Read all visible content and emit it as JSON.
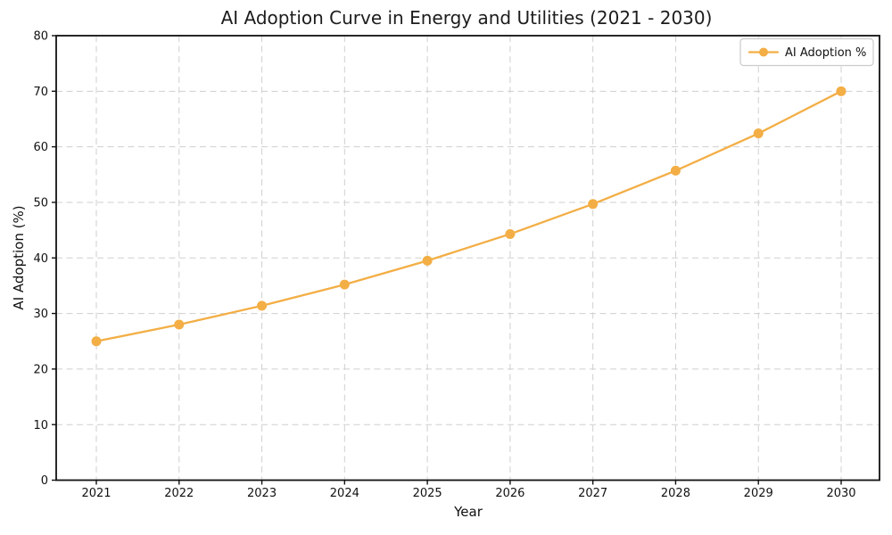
{
  "chart_data": {
    "type": "line",
    "title": "AI Adoption Curve in Energy and Utilities (2021 - 2030)",
    "xlabel": "Year",
    "ylabel": "AI Adoption (%)",
    "x": [
      "2021",
      "2022",
      "2023",
      "2024",
      "2025",
      "2026",
      "2027",
      "2028",
      "2029",
      "2030"
    ],
    "series": [
      {
        "name": "AI Adoption %",
        "color": "#F3AE45",
        "marker": "circle",
        "values": [
          25.0,
          28.0,
          31.4,
          35.2,
          39.5,
          44.3,
          49.7,
          55.7,
          62.4,
          70.0
        ]
      }
    ],
    "ylim": [
      0,
      80
    ],
    "ytick_step": 10,
    "yticks": [
      0,
      10,
      20,
      30,
      40,
      50,
      60,
      70,
      80
    ],
    "grid": true,
    "grid_color": "#cfcfcf",
    "grid_style": "dashed",
    "legend_position": "upper right",
    "background": "#ffffff"
  }
}
